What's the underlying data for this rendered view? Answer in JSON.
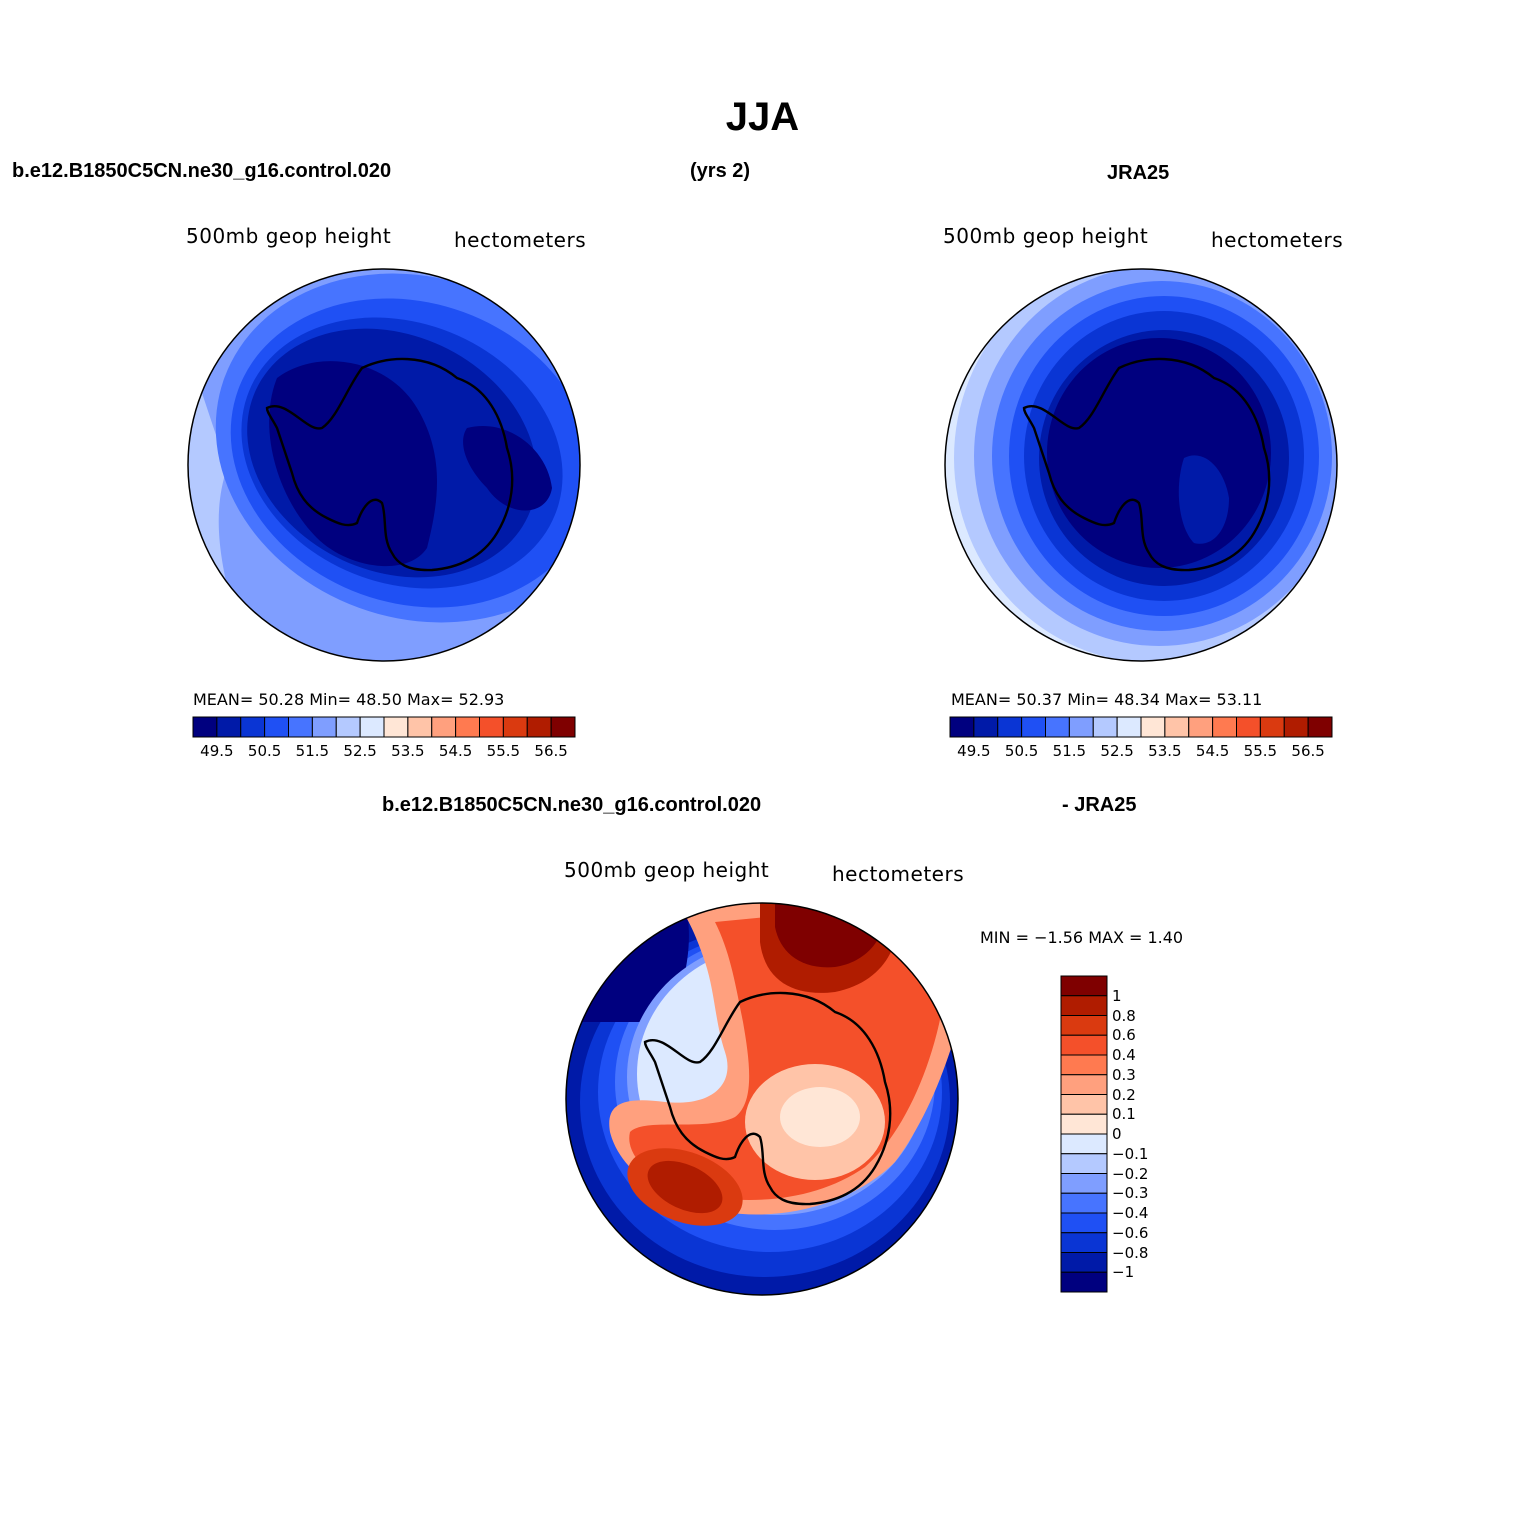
{
  "title": "JJA",
  "panels": [
    {
      "case_name": "b.e12.B1850C5CN.ne30_g16.control.020",
      "years": "(yrs 2)",
      "variable": "500mb  geop  height",
      "units": "hectometers",
      "stats_text": "MEAN=   50.28   Min=   48.50   Max=   52.93",
      "stats": {
        "mean": 50.28,
        "min": 48.5,
        "max": 52.93
      }
    },
    {
      "case_name": "JRA25",
      "variable": "500mb  geop  height",
      "units": "hectometers",
      "stats_text": "MEAN=   50.37   Min=   48.34   Max=   53.11",
      "stats": {
        "mean": 50.37,
        "min": 48.34,
        "max": 53.11
      }
    },
    {
      "case_name": "b.e12.B1850C5CN.ne30_g16.control.020",
      "minus_label": "- JRA25",
      "variable": "500mb  geop  height",
      "units": "hectometers",
      "minmax_text": "MIN =   −1.56  MAX =     1.40",
      "stats": {
        "min": -1.56,
        "max": 1.4
      }
    }
  ],
  "abs_colorbar": {
    "colors": [
      "#00007f",
      "#001aa8",
      "#0a35d4",
      "#1f50f4",
      "#4774ff",
      "#7f9eff",
      "#b4c9ff",
      "#dce9ff",
      "#ffe6d6",
      "#ffc4a8",
      "#ffa07e",
      "#ff7a50",
      "#f4502a",
      "#da3a10",
      "#b01c00",
      "#7f0000"
    ],
    "labels": [
      "49.5",
      "50.5",
      "51.5",
      "52.5",
      "53.5",
      "54.5",
      "55.5",
      "56.5"
    ]
  },
  "diff_colorbar": {
    "colors_top_to_bottom": [
      "#7f0000",
      "#b01c00",
      "#da3a10",
      "#f4502a",
      "#ff7a50",
      "#ffa07e",
      "#ffc4a8",
      "#ffe6d6",
      "#dce9ff",
      "#b4c9ff",
      "#7f9eff",
      "#4774ff",
      "#1f50f4",
      "#0a35d4",
      "#001aa8",
      "#00007f"
    ],
    "labels": [
      "1",
      "0.8",
      "0.6",
      "0.4",
      "0.3",
      "0.2",
      "0.1",
      "0",
      "−0.1",
      "−0.2",
      "−0.3",
      "−0.4",
      "−0.6",
      "−0.8",
      "−1"
    ]
  }
}
